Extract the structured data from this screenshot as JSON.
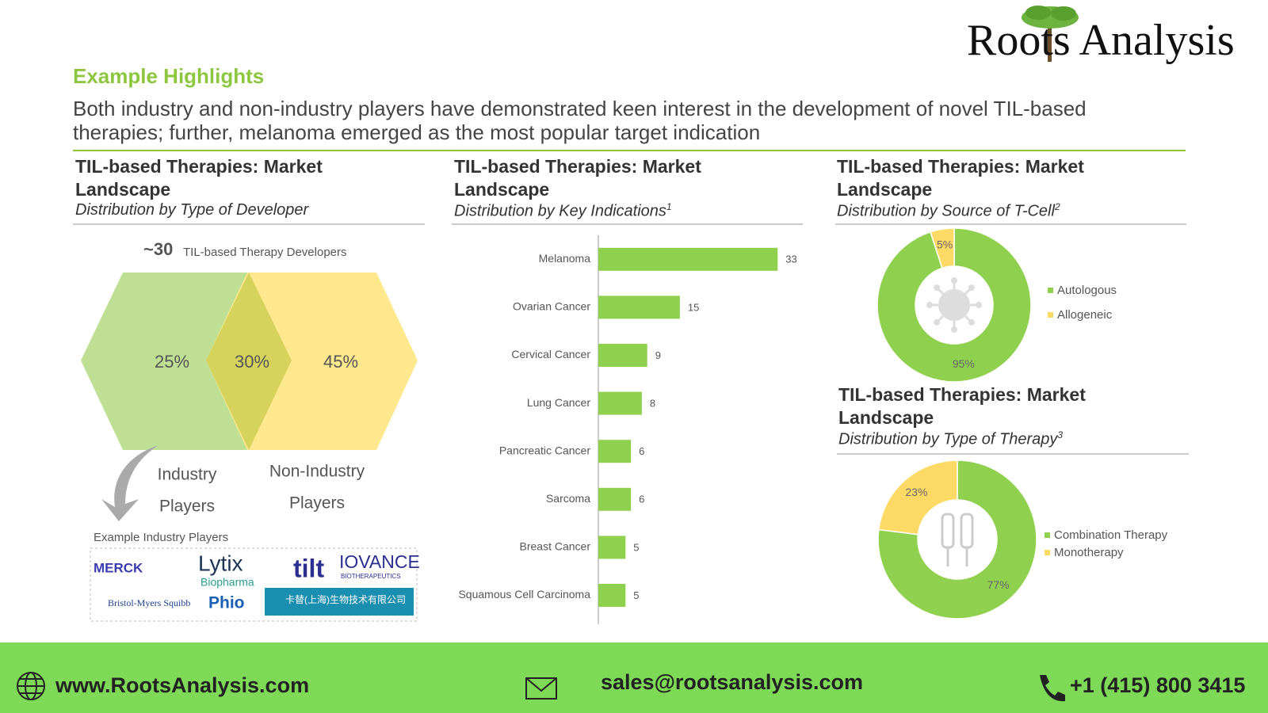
{
  "header": {
    "brand": "Roots Analysis",
    "section": "Example Highlights",
    "description_lines": [
      "Both industry and non-industry players have demonstrated keen interest in the development of novel TIL-based",
      "therapies; further, melanoma emerged as the most popular target indication"
    ]
  },
  "developer_panel": {
    "title": "TIL-based Therapies: Market Landscape",
    "subtitle": "Distribution by Type of Developer",
    "count": "~30",
    "count_caption": "TIL-based Therapy Developers",
    "shares": [
      "25%",
      "30%",
      "45%"
    ],
    "industry_lines": [
      "Industry",
      "Players"
    ],
    "non_industry_lines": [
      "Non-Industry",
      "Players"
    ],
    "examples_caption": "Example Industry Players",
    "logos": [
      "MERCK",
      "Lytix",
      "Biopharma",
      "tilt",
      "IOVANCE",
      "BIOTHERAPEUTICS",
      "Bristol-Myers Squibb",
      "Phio",
      "卡替(上海)生物技术有限公司"
    ]
  },
  "chart_data": [
    {
      "type": "bar",
      "orientation": "horizontal",
      "title": "TIL-based Therapies: Market Landscape",
      "subtitle": "Distribution by Key Indications",
      "note": "1",
      "categories": [
        "Melanoma",
        "Ovarian Cancer",
        "Cervical Cancer",
        "Lung Cancer",
        "Pancreatic Cancer",
        "Sarcoma",
        "Breast Cancer",
        "Squamous Cell Carcinoma"
      ],
      "values": [
        33,
        15,
        9,
        8,
        6,
        6,
        5,
        5
      ],
      "color": "#8fd14f",
      "xlim": [
        0,
        35
      ]
    },
    {
      "type": "pie",
      "title": "TIL-based Therapies: Market Landscape",
      "subtitle": "Distribution by Source of T-Cell",
      "note": "2",
      "categories": [
        "Autologous",
        "Allogeneic"
      ],
      "values": [
        95,
        5
      ],
      "value_labels": [
        "95%",
        "5%"
      ],
      "colors": [
        "#8fd14f",
        "#fdd966"
      ]
    },
    {
      "type": "pie",
      "title": "TIL-based Therapies: Market Landscape",
      "subtitle": "Distribution by Type of Therapy",
      "note": "3",
      "categories": [
        "Combination Therapy",
        "Monotherapy"
      ],
      "values": [
        77,
        23
      ],
      "value_labels": [
        "77%",
        "23%"
      ],
      "colors": [
        "#8fd14f",
        "#fdd966"
      ]
    }
  ],
  "footer": {
    "website": "www.RootsAnalysis.com",
    "email": "sales@rootsanalysis.com",
    "phone": "+1 (415) 800 3415"
  }
}
